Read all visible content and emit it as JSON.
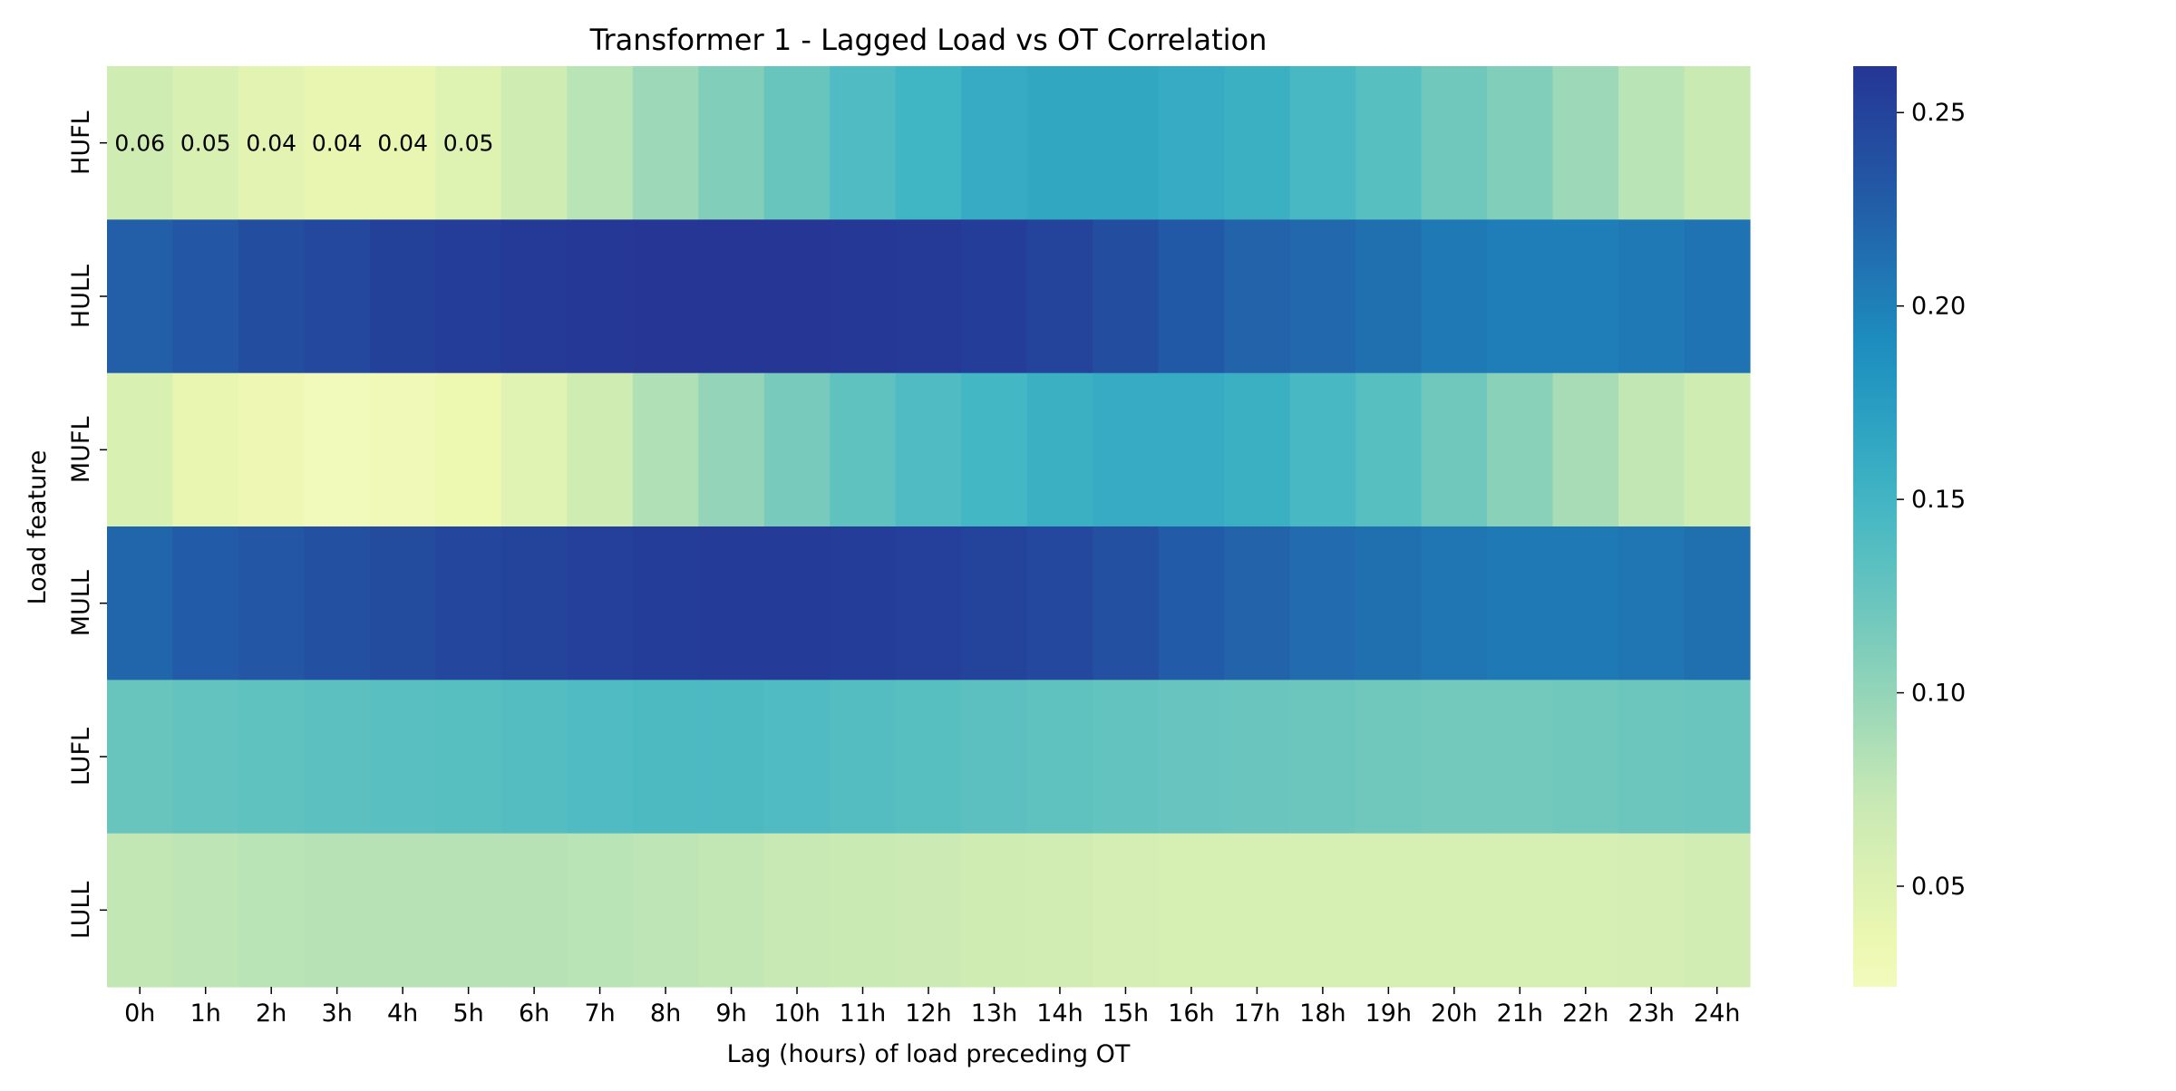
{
  "chart_data": {
    "type": "heatmap",
    "title": "Transformer 1 - Lagged Load vs OT Correlation",
    "xlabel": "Lag (hours) of load preceding OT",
    "ylabel": "Load feature",
    "x_categories": [
      "0h",
      "1h",
      "2h",
      "3h",
      "4h",
      "5h",
      "6h",
      "7h",
      "8h",
      "9h",
      "10h",
      "11h",
      "12h",
      "13h",
      "14h",
      "15h",
      "16h",
      "17h",
      "18h",
      "19h",
      "20h",
      "21h",
      "22h",
      "23h",
      "24h"
    ],
    "y_categories": [
      "HUFL",
      "HULL",
      "MUFL",
      "MULL",
      "LUFL",
      "LULL"
    ],
    "values": [
      [
        0.065,
        0.055,
        0.045,
        0.04,
        0.04,
        0.05,
        0.065,
        0.08,
        0.095,
        0.11,
        0.125,
        0.14,
        0.15,
        0.16,
        0.165,
        0.165,
        0.16,
        0.155,
        0.145,
        0.135,
        0.12,
        0.11,
        0.095,
        0.08,
        0.07
      ],
      [
        0.225,
        0.232,
        0.24,
        0.245,
        0.252,
        0.255,
        0.258,
        0.26,
        0.262,
        0.262,
        0.262,
        0.26,
        0.258,
        0.255,
        0.25,
        0.24,
        0.23,
        0.222,
        0.218,
        0.212,
        0.205,
        0.202,
        0.202,
        0.205,
        0.21
      ],
      [
        0.055,
        0.04,
        0.032,
        0.025,
        0.028,
        0.035,
        0.048,
        0.065,
        0.085,
        0.1,
        0.115,
        0.13,
        0.14,
        0.148,
        0.155,
        0.16,
        0.16,
        0.155,
        0.145,
        0.135,
        0.12,
        0.105,
        0.09,
        0.075,
        0.065
      ],
      [
        0.22,
        0.228,
        0.232,
        0.238,
        0.242,
        0.246,
        0.25,
        0.253,
        0.255,
        0.256,
        0.256,
        0.255,
        0.253,
        0.25,
        0.245,
        0.238,
        0.228,
        0.222,
        0.216,
        0.212,
        0.208,
        0.205,
        0.205,
        0.208,
        0.212
      ],
      [
        0.125,
        0.128,
        0.13,
        0.132,
        0.134,
        0.135,
        0.138,
        0.14,
        0.142,
        0.142,
        0.14,
        0.138,
        0.135,
        0.132,
        0.13,
        0.128,
        0.126,
        0.124,
        0.122,
        0.12,
        0.118,
        0.118,
        0.12,
        0.122,
        0.124
      ],
      [
        0.075,
        0.078,
        0.08,
        0.082,
        0.082,
        0.082,
        0.082,
        0.08,
        0.078,
        0.075,
        0.072,
        0.07,
        0.068,
        0.065,
        0.062,
        0.06,
        0.058,
        0.058,
        0.058,
        0.058,
        0.058,
        0.058,
        0.058,
        0.06,
        0.062
      ]
    ],
    "annotations": [
      {
        "row": 0,
        "col": 0,
        "text": "0.06"
      },
      {
        "row": 0,
        "col": 1,
        "text": "0.05"
      },
      {
        "row": 0,
        "col": 2,
        "text": "0.04"
      },
      {
        "row": 0,
        "col": 3,
        "text": "0.04"
      },
      {
        "row": 0,
        "col": 4,
        "text": "0.04"
      },
      {
        "row": 0,
        "col": 5,
        "text": "0.05"
      }
    ],
    "colorbar": {
      "colormap": "YlGnBu",
      "vmin": 0.024,
      "vmax": 0.262,
      "ticks": [
        0.05,
        0.1,
        0.15,
        0.2,
        0.25
      ],
      "tick_labels": [
        "0.05",
        "0.10",
        "0.15",
        "0.20",
        "0.25"
      ]
    }
  }
}
